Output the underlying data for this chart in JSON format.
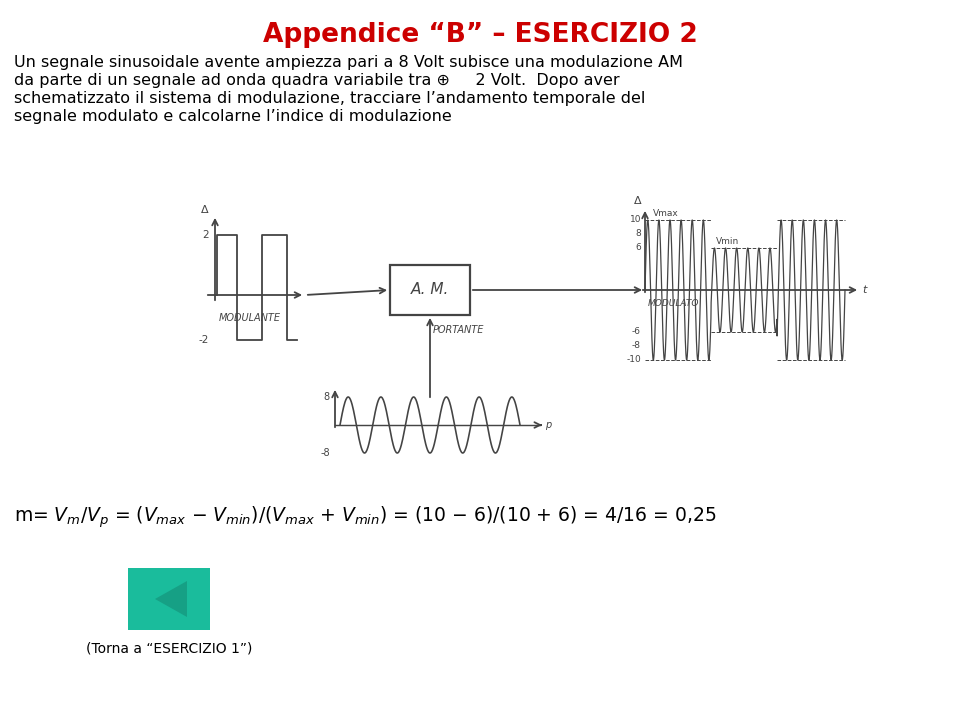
{
  "title": "Appendice “B” – ESERCIZIO 2",
  "title_color": "#cc0000",
  "bg_color": "#ffffff",
  "body_lines": [
    "Un segnale sinusoidale avente ampiezza pari a 8 Volt subisce una modulazione AM",
    "da parte di un segnale ad onda quadra variabile tra ⊕     2 Volt.  Dopo aver",
    "schematizzato il sistema di modulazione, tracciare l’andamento temporale del",
    "segnale modulato e calcolarne l’indice di modulazione"
  ],
  "back_button_color": "#1abc9c",
  "back_button_dark": "#16a085",
  "back_text": "(Torna a “ESERCIZIO 1”)"
}
